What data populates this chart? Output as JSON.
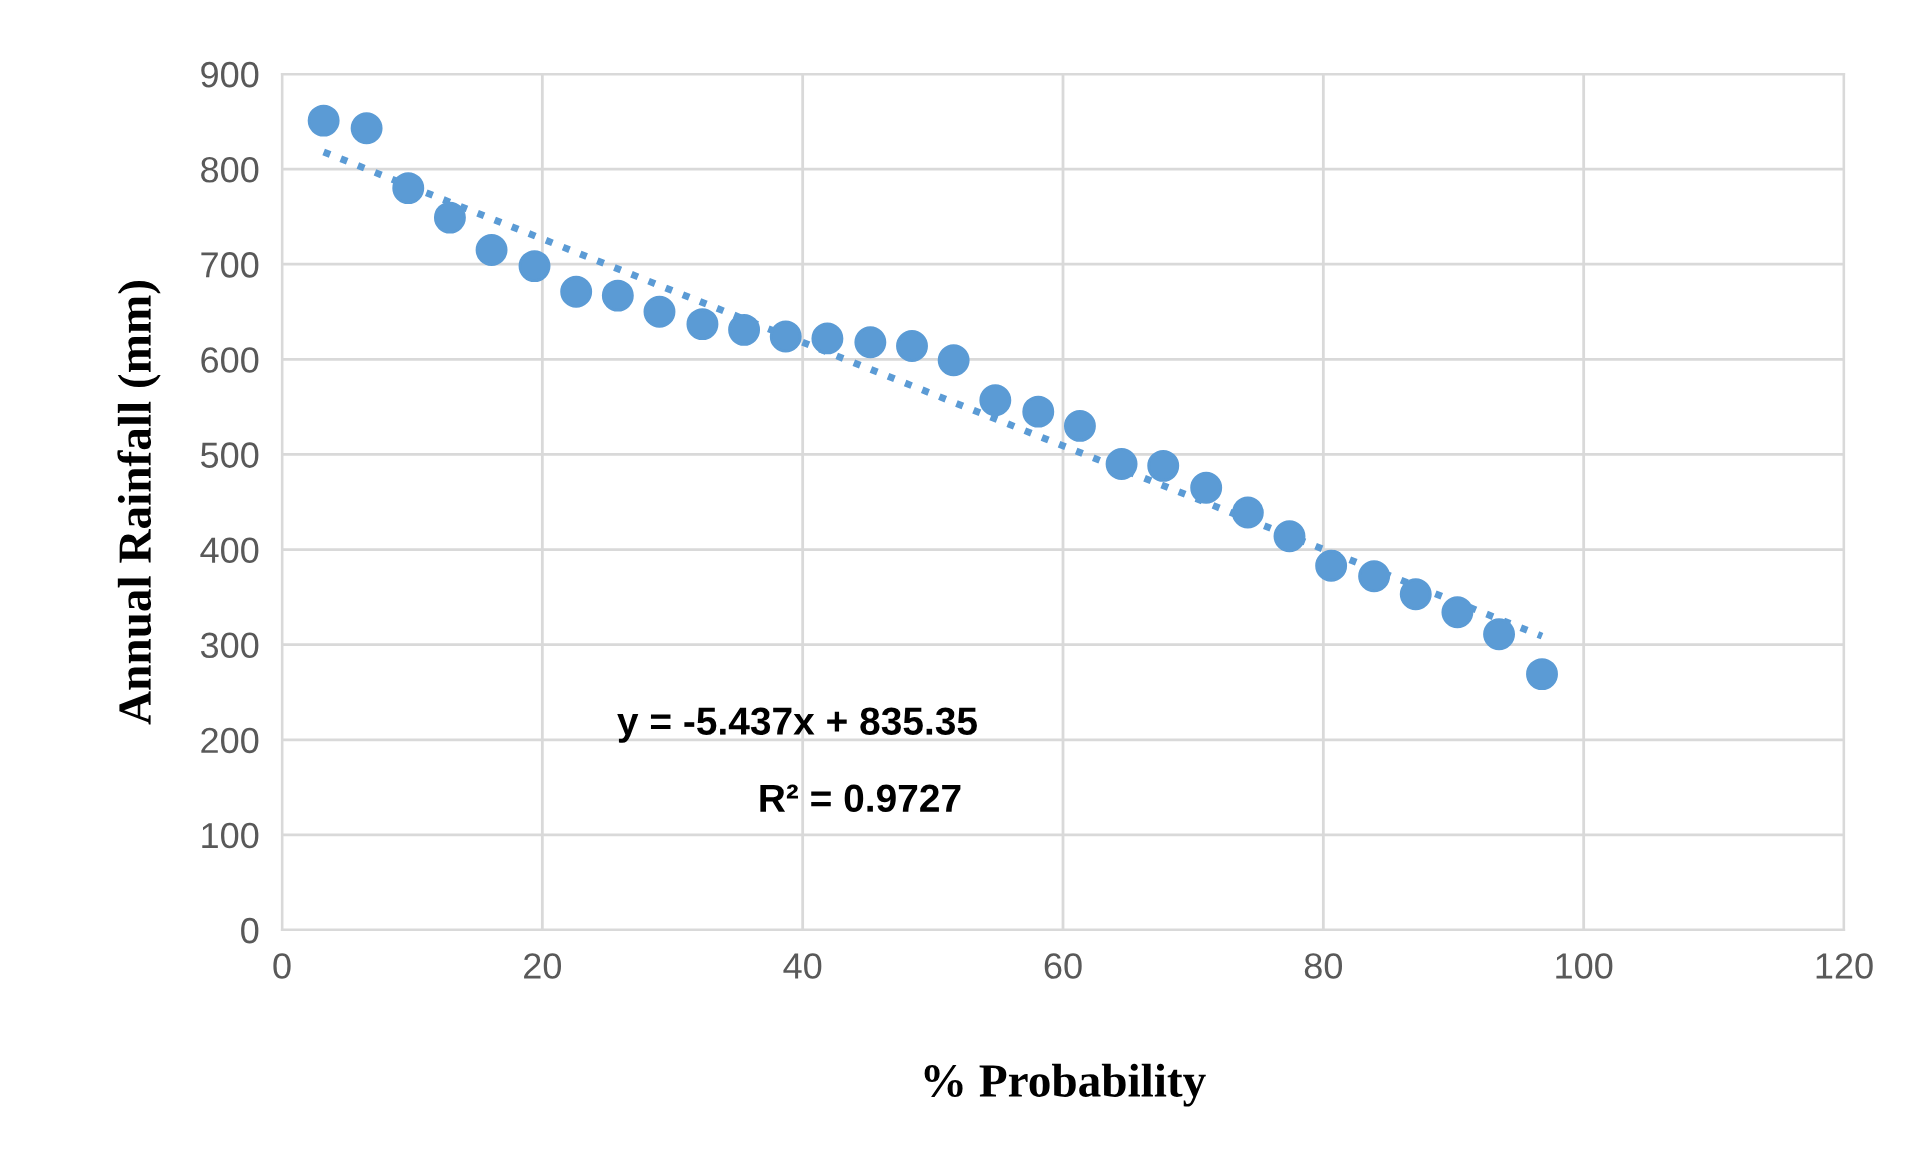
{
  "chart_data": {
    "type": "scatter",
    "xlabel": "% Probability",
    "ylabel": "Annual Rainfall (mm)",
    "xlim": [
      0,
      120
    ],
    "xticks": [
      0,
      20,
      40,
      60,
      80,
      100,
      120
    ],
    "ylim": [
      0,
      900
    ],
    "yticks": [
      0,
      100,
      200,
      300,
      400,
      500,
      600,
      700,
      800,
      900
    ],
    "grid": true,
    "series": [
      {
        "marker": "circle",
        "color": "#5b9bd5",
        "x": [
          3.2,
          6.5,
          9.7,
          12.9,
          16.1,
          19.4,
          22.6,
          25.8,
          29.0,
          32.3,
          35.5,
          38.7,
          41.9,
          45.2,
          48.4,
          51.6,
          54.8,
          58.1,
          61.3,
          64.5,
          67.7,
          71.0,
          74.2,
          77.4,
          80.6,
          83.9,
          87.1,
          90.3,
          93.5,
          96.8
        ],
        "values": [
          851,
          843,
          780,
          749,
          715,
          698,
          671,
          667,
          650,
          637,
          631,
          624,
          622,
          618,
          614,
          599,
          557,
          545,
          530,
          490,
          488,
          465,
          439,
          414,
          383,
          372,
          353,
          334,
          311,
          269
        ]
      },
      {
        "type": "line",
        "color": "#5b9bd5",
        "line_style": "dotted",
        "x": [
          3.2,
          96.8
        ],
        "values": [
          818,
          309
        ]
      }
    ],
    "annotations": [
      "y = -5.437x + 835.35",
      "R² = 0.9727"
    ]
  }
}
